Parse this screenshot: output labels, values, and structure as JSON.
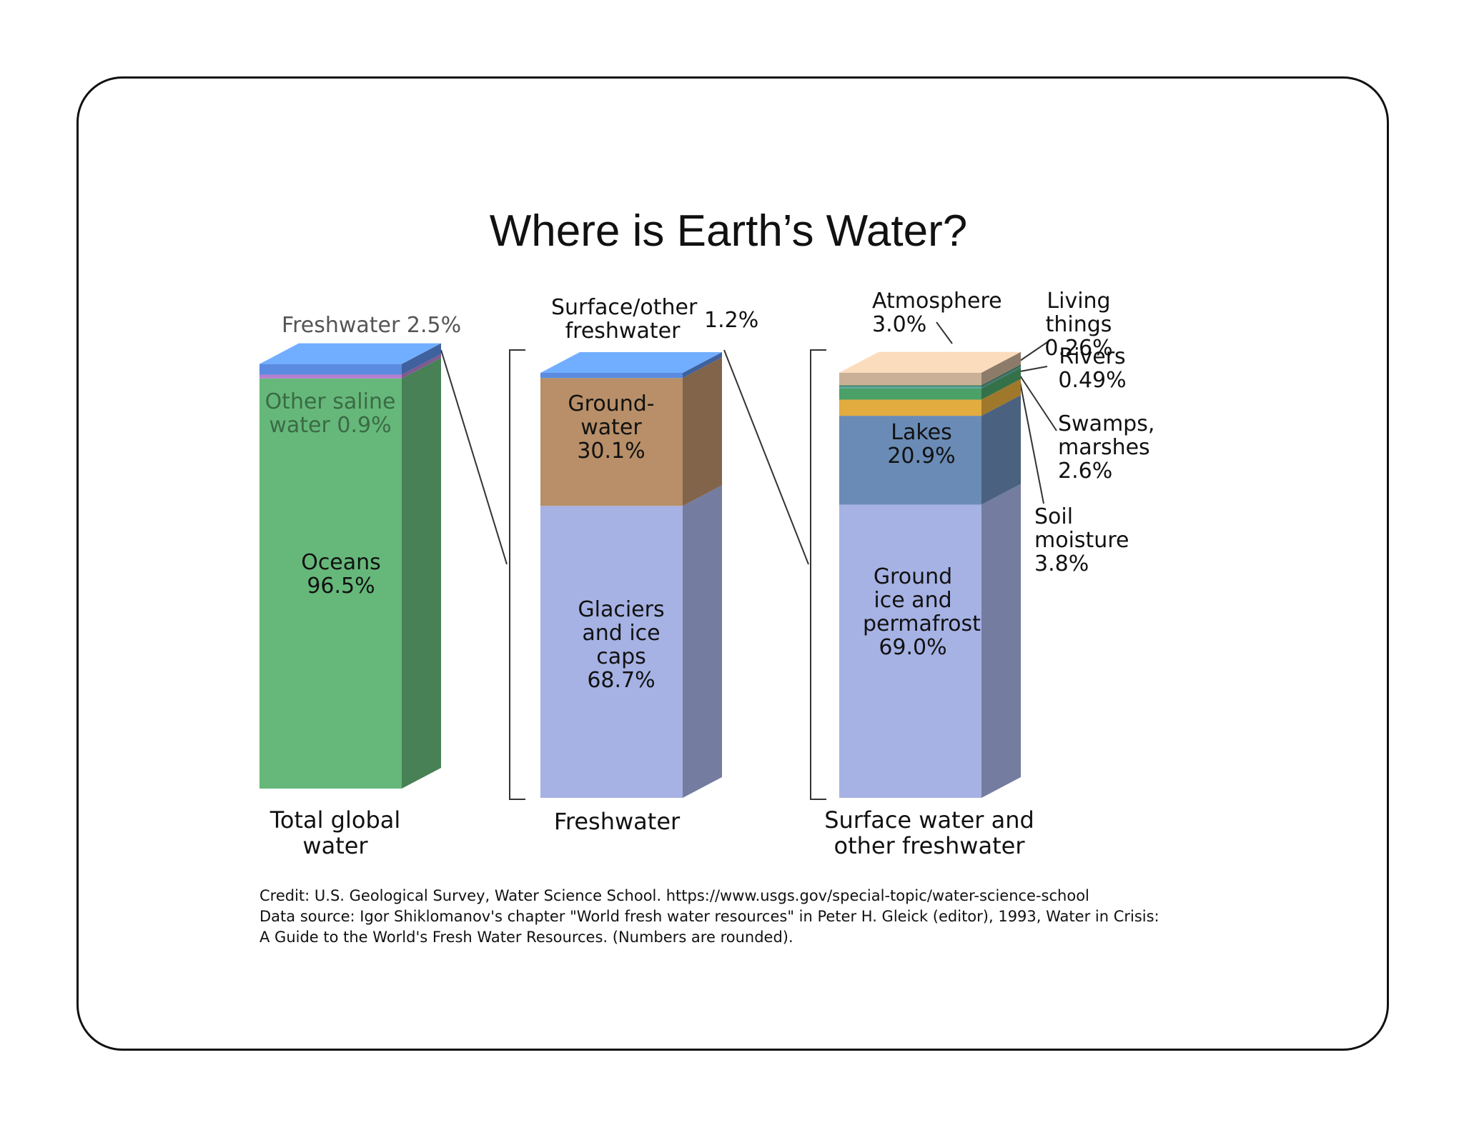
{
  "chart_data": {
    "type": "stacked-bar-3d",
    "title": "Where is Earth’s Water?",
    "ylim": [
      0,
      100
    ],
    "bars": [
      {
        "label": "Total global water",
        "categories": [
          "Oceans",
          "Other saline water",
          "Freshwater"
        ],
        "values": [
          96.5,
          0.9,
          2.5
        ],
        "value_labels": [
          "96.5%",
          "0.9%",
          "2.5%"
        ],
        "colors": [
          "#66b87a",
          "#b57fd0",
          "#5a8be0"
        ]
      },
      {
        "label": "Freshwater",
        "categories": [
          "Glaciers and ice caps",
          "Ground-water",
          "Surface/other freshwater"
        ],
        "values": [
          68.7,
          30.1,
          1.2
        ],
        "value_labels": [
          "68.7%",
          "30.1%",
          "1.2%"
        ],
        "colors": [
          "#a6b2e4",
          "#b88f68",
          "#5a8be0"
        ]
      },
      {
        "label": "Surface water and other freshwater",
        "categories": [
          "Ground ice and permafrost",
          "Lakes",
          "Soil moisture",
          "Swamps, marshes",
          "Rivers",
          "Living things",
          "Atmosphere"
        ],
        "values": [
          69.0,
          20.9,
          3.8,
          2.6,
          0.49,
          0.26,
          3.0
        ],
        "value_labels": [
          "69.0%",
          "20.9%",
          "3.8%",
          "2.6%",
          "0.49%",
          "0.26%",
          "3.0%"
        ],
        "colors": [
          "#a6b2e4",
          "#6a8bb5",
          "#e3ac3f",
          "#4aa067",
          "#5fa8a0",
          "#2e7a50",
          "#c9b097"
        ]
      }
    ],
    "notes": [
      "Credit: U.S. Geological Survey, Water Science School. https://www.usgs.gov/special-topic/water-science-school",
      "Data source: Igor Shiklomanov's chapter \"World fresh water resources\" in Peter H. Gleick (editor), 1993, Water in Crisis:",
      "A Guide to the World's Fresh Water Resources. (Numbers are rounded)."
    ]
  }
}
